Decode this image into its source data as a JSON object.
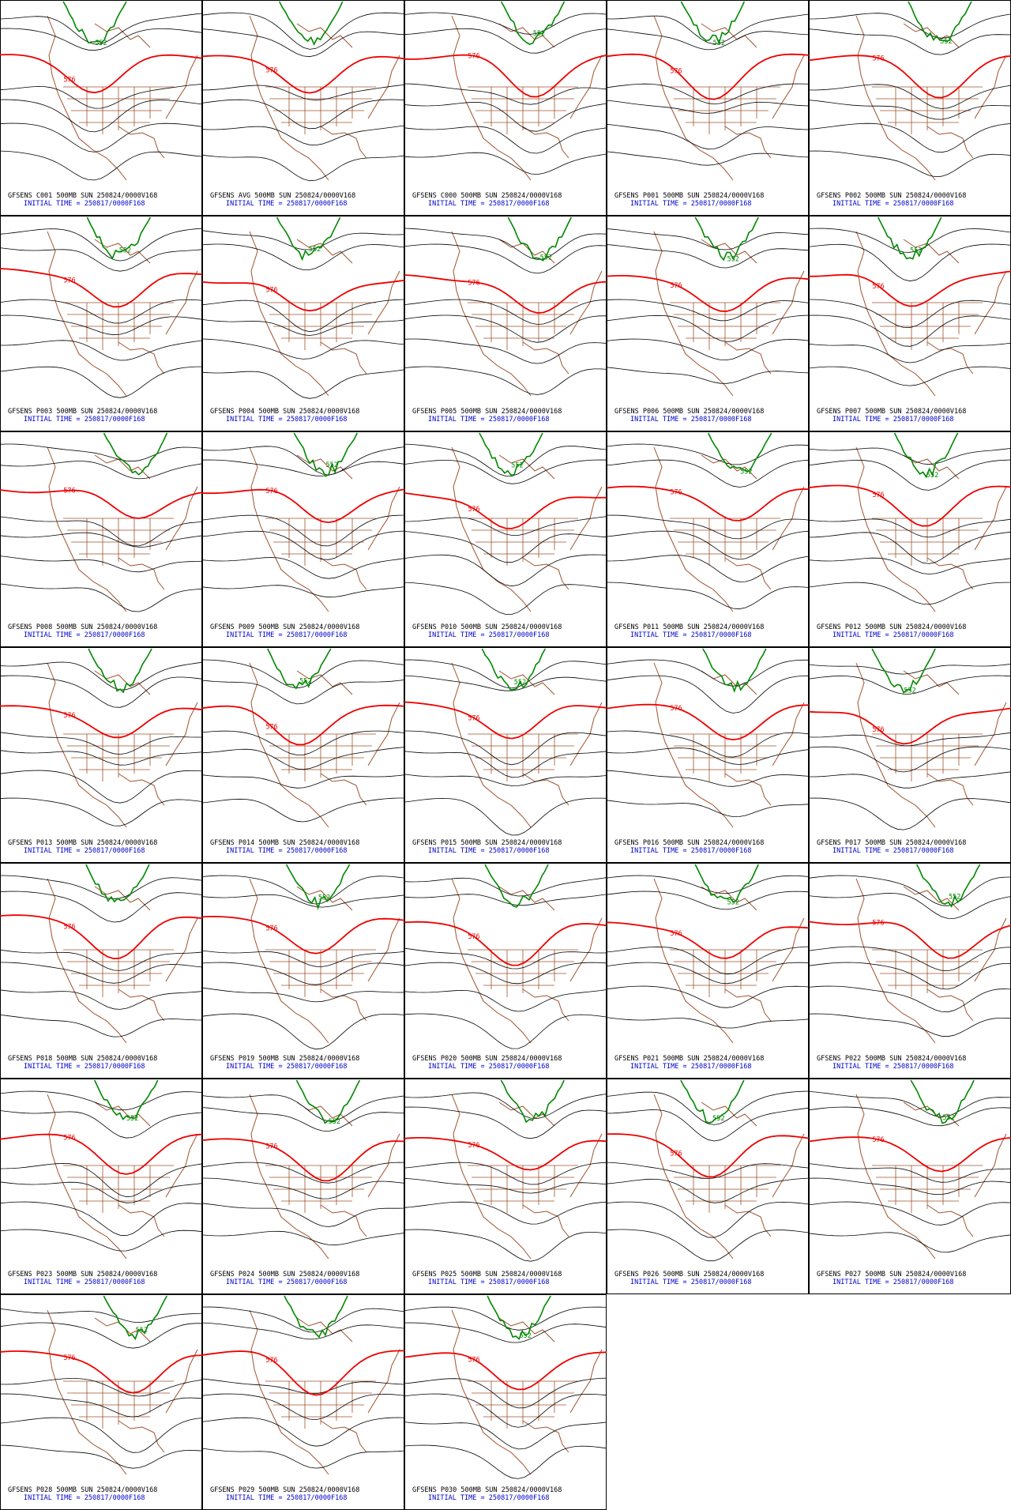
{
  "panels": [
    {
      "caption": "GFSENS C001 500MB SUN 250824/0000V168",
      "initial": "INITIAL TIME = 250817/0000F168",
      "contour_labels": [
        "576",
        "552"
      ]
    },
    {
      "caption": "GFSENS AVG 500MB SUN 250824/0000V168",
      "initial": "INITIAL TIME = 250817/0000F168",
      "contour_labels": [
        "576"
      ]
    },
    {
      "caption": "GFSENS C000 500MB SUN 250824/0000V168",
      "initial": "INITIAL TIME = 250817/0000F168",
      "contour_labels": [
        "576",
        "552"
      ]
    },
    {
      "caption": "GFSENS P001 500MB SUN 250824/0000V168",
      "initial": "INITIAL TIME = 250817/0000F168",
      "contour_labels": [
        "576",
        "552"
      ]
    },
    {
      "caption": "GFSENS P002 500MB SUN 250824/0000V168",
      "initial": "INITIAL TIME = 250817/0000F168",
      "contour_labels": [
        "576",
        "552"
      ]
    },
    {
      "caption": "GFSENS P003 500MB SUN 250824/0000V168",
      "initial": "INITIAL TIME = 250817/0000F168",
      "contour_labels": [
        "576",
        "552"
      ]
    },
    {
      "caption": "GFSENS P004 500MB SUN 250824/0000V168",
      "initial": "INITIAL TIME = 250817/0000F168",
      "contour_labels": [
        "576",
        "552"
      ]
    },
    {
      "caption": "GFSENS P005 500MB SUN 250824/0000V168",
      "initial": "INITIAL TIME = 250817/0000F168",
      "contour_labels": [
        "576",
        "552"
      ]
    },
    {
      "caption": "GFSENS P006 500MB SUN 250824/0000V168",
      "initial": "INITIAL TIME = 250817/0000F168",
      "contour_labels": [
        "576",
        "552"
      ]
    },
    {
      "caption": "GFSENS P007 500MB SUN 250824/0000V168",
      "initial": "INITIAL TIME = 250817/0000F168",
      "contour_labels": [
        "576",
        "552"
      ]
    },
    {
      "caption": "GFSENS P008 500MB SUN 250824/0000V168",
      "initial": "INITIAL TIME = 250817/0000F168",
      "contour_labels": [
        "576"
      ]
    },
    {
      "caption": "GFSENS P009 500MB SUN 250824/0000V168",
      "initial": "INITIAL TIME = 250817/0000F168",
      "contour_labels": [
        "576",
        "552"
      ]
    },
    {
      "caption": "GFSENS P010 500MB SUN 250824/0000V168",
      "initial": "INITIAL TIME = 250817/0000F168",
      "contour_labels": [
        "576",
        "552"
      ]
    },
    {
      "caption": "GFSENS P011 500MB SUN 250824/0000V168",
      "initial": "INITIAL TIME = 250817/0000F168",
      "contour_labels": [
        "576",
        "552"
      ]
    },
    {
      "caption": "GFSENS P012 500MB SUN 250824/0000V168",
      "initial": "INITIAL TIME = 250817/0000F168",
      "contour_labels": [
        "576",
        "552"
      ]
    },
    {
      "caption": "GFSENS P013 500MB SUN 250824/0000V168",
      "initial": "INITIAL TIME = 250817/0000F168",
      "contour_labels": [
        "576"
      ]
    },
    {
      "caption": "GFSENS P014 500MB SUN 250824/0000V168",
      "initial": "INITIAL TIME = 250817/0000F168",
      "contour_labels": [
        "576",
        "552"
      ]
    },
    {
      "caption": "GFSENS P015 500MB SUN 250824/0000V168",
      "initial": "INITIAL TIME = 250817/0000F168",
      "contour_labels": [
        "576",
        "552"
      ]
    },
    {
      "caption": "GFSENS P016 500MB SUN 250824/0000V168",
      "initial": "INITIAL TIME = 250817/0000F168",
      "contour_labels": [
        "576"
      ]
    },
    {
      "caption": "GFSENS P017 500MB SUN 250824/0000V168",
      "initial": "INITIAL TIME = 250817/0000F168",
      "contour_labels": [
        "576",
        "552"
      ]
    },
    {
      "caption": "GFSENS P018 500MB SUN 250824/0000V168",
      "initial": "INITIAL TIME = 250817/0000F168",
      "contour_labels": [
        "576"
      ]
    },
    {
      "caption": "GFSENS P019 500MB SUN 250824/0000V168",
      "initial": "INITIAL TIME = 250817/0000F168",
      "contour_labels": [
        "576",
        "552"
      ]
    },
    {
      "caption": "GFSENS P020 500MB SUN 250824/0000V168",
      "initial": "INITIAL TIME = 250817/0000F168",
      "contour_labels": [
        "576"
      ]
    },
    {
      "caption": "GFSENS P021 500MB SUN 250824/0000V168",
      "initial": "INITIAL TIME = 250817/0000F168",
      "contour_labels": [
        "576",
        "552"
      ]
    },
    {
      "caption": "GFSENS P022 500MB SUN 250824/0000V168",
      "initial": "INITIAL TIME = 250817/0000F168",
      "contour_labels": [
        "576",
        "552"
      ]
    },
    {
      "caption": "GFSENS P023 500MB SUN 250824/0000V168",
      "initial": "INITIAL TIME = 250817/0000F168",
      "contour_labels": [
        "576",
        "552"
      ]
    },
    {
      "caption": "GFSENS P024 500MB SUN 250824/0000V168",
      "initial": "INITIAL TIME = 250817/0000F168",
      "contour_labels": [
        "576",
        "552"
      ]
    },
    {
      "caption": "GFSENS P025 500MB SUN 250824/0000V168",
      "initial": "INITIAL TIME = 250817/0000F168",
      "contour_labels": [
        "576"
      ]
    },
    {
      "caption": "GFSENS P026 500MB SUN 250824/0000V168",
      "initial": "INITIAL TIME = 250817/0000F168",
      "contour_labels": [
        "576",
        "552"
      ]
    },
    {
      "caption": "GFSENS P027 500MB SUN 250824/0000V168",
      "initial": "INITIAL TIME = 250817/0000F168",
      "contour_labels": [
        "576",
        "552"
      ]
    },
    {
      "caption": "GFSENS P028 500MB SUN 250824/0000V168",
      "initial": "INITIAL TIME = 250817/0000F168",
      "contour_labels": [
        "576",
        "552"
      ]
    },
    {
      "caption": "GFSENS P029 500MB SUN 250824/0000V168",
      "initial": "INITIAL TIME = 250817/0000F168",
      "contour_labels": [
        "576"
      ]
    },
    {
      "caption": "GFSENS P030 500MB SUN 250824/0000V168",
      "initial": "INITIAL TIME = 250817/0000F168",
      "contour_labels": [
        "576",
        "552"
      ]
    }
  ]
}
